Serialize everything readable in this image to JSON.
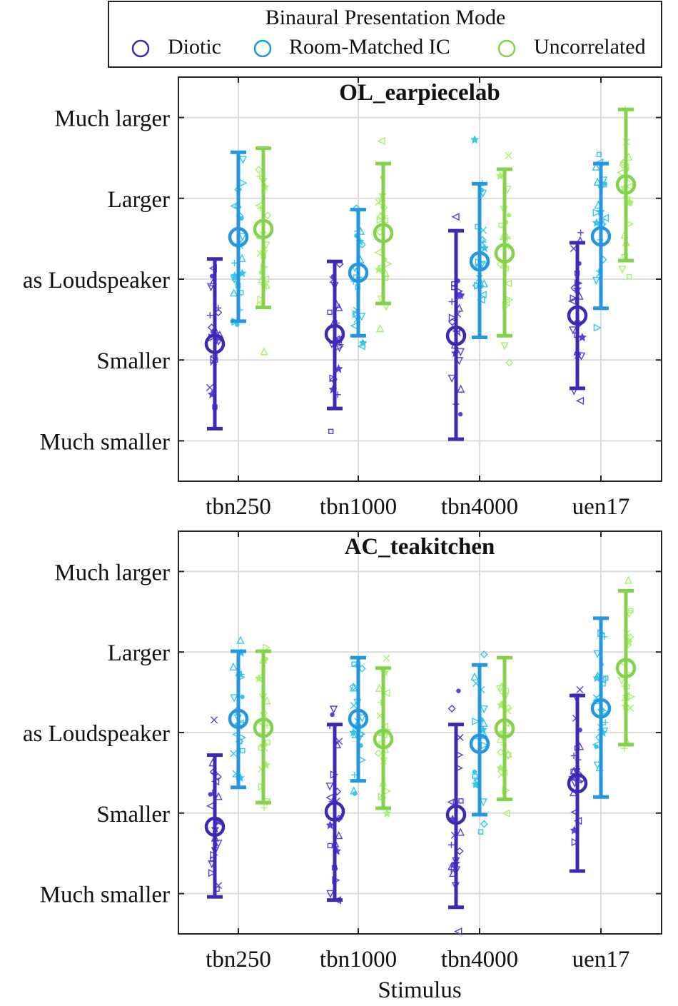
{
  "legend": {
    "title": "Binaural Presentation Mode",
    "entries": [
      {
        "label": "Diotic",
        "color": "#3d2ab2"
      },
      {
        "label": "Room-Matched IC",
        "color": "#2596e0"
      },
      {
        "label": "Uncorrelated",
        "color": "#84d24c"
      }
    ]
  },
  "colors": {
    "diotic_points": "#5a3ee0",
    "roommatched_points": "#34c8e8",
    "uncorrelated_points": "#aaf070",
    "grid": "#dcdcdc",
    "axes": "#262626"
  },
  "chart_data": [
    {
      "type": "scatter",
      "title": "OL_earpiecelab",
      "xlabel": "",
      "ylabel": "",
      "categories": [
        "tbn250",
        "tbn1000",
        "tbn4000",
        "uen17"
      ],
      "y_tick_labels": [
        "Much smaller",
        "Smaller",
        "as Loudspeaker",
        "Larger",
        "Much larger"
      ],
      "y_tick_values": [
        -2,
        -1,
        0,
        1,
        2
      ],
      "ylim": [
        -2.5,
        2.5
      ],
      "series": [
        {
          "name": "Diotic",
          "mean": [
            -0.8,
            -0.68,
            -0.7,
            -0.45
          ],
          "err_low": [
            -1.85,
            -1.6,
            -1.98,
            -1.35
          ],
          "err_high": [
            0.25,
            0.22,
            0.6,
            0.45
          ]
        },
        {
          "name": "Room-Matched IC",
          "mean": [
            0.52,
            0.08,
            0.22,
            0.53
          ],
          "err_low": [
            -0.52,
            -0.7,
            -0.72,
            -0.36
          ],
          "err_high": [
            1.57,
            0.86,
            1.18,
            1.43
          ]
        },
        {
          "name": "Uncorrelated",
          "mean": [
            0.62,
            0.57,
            0.32,
            1.17
          ],
          "err_low": [
            -0.35,
            -0.3,
            -0.7,
            0.23
          ],
          "err_high": [
            1.62,
            1.43,
            1.36,
            2.1
          ]
        }
      ]
    },
    {
      "type": "scatter",
      "title": "AC_teakitchen",
      "xlabel": "Stimulus",
      "ylabel": "",
      "categories": [
        "tbn250",
        "tbn1000",
        "tbn4000",
        "uen17"
      ],
      "y_tick_labels": [
        "Much smaller",
        "Smaller",
        "as Loudspeaker",
        "Larger",
        "Much larger"
      ],
      "y_tick_values": [
        -2,
        -1,
        0,
        1,
        2
      ],
      "ylim": [
        -2.5,
        2.5
      ],
      "series": [
        {
          "name": "Diotic",
          "mean": [
            -1.17,
            -0.98,
            -1.02,
            -0.63
          ],
          "err_low": [
            -2.04,
            -2.08,
            -2.17,
            -1.72
          ],
          "err_high": [
            -0.28,
            0.1,
            0.1,
            0.46
          ]
        },
        {
          "name": "Room-Matched IC",
          "mean": [
            0.17,
            0.17,
            -0.14,
            0.3
          ],
          "err_low": [
            -0.68,
            -0.6,
            -1.02,
            -0.8
          ],
          "err_high": [
            1.01,
            0.93,
            0.84,
            1.42
          ]
        },
        {
          "name": "Uncorrelated",
          "mean": [
            0.06,
            -0.08,
            0.05,
            0.8
          ],
          "err_low": [
            -0.87,
            -0.94,
            -0.83,
            -0.15
          ],
          "err_high": [
            1.01,
            0.8,
            0.93,
            1.76
          ]
        }
      ]
    }
  ]
}
